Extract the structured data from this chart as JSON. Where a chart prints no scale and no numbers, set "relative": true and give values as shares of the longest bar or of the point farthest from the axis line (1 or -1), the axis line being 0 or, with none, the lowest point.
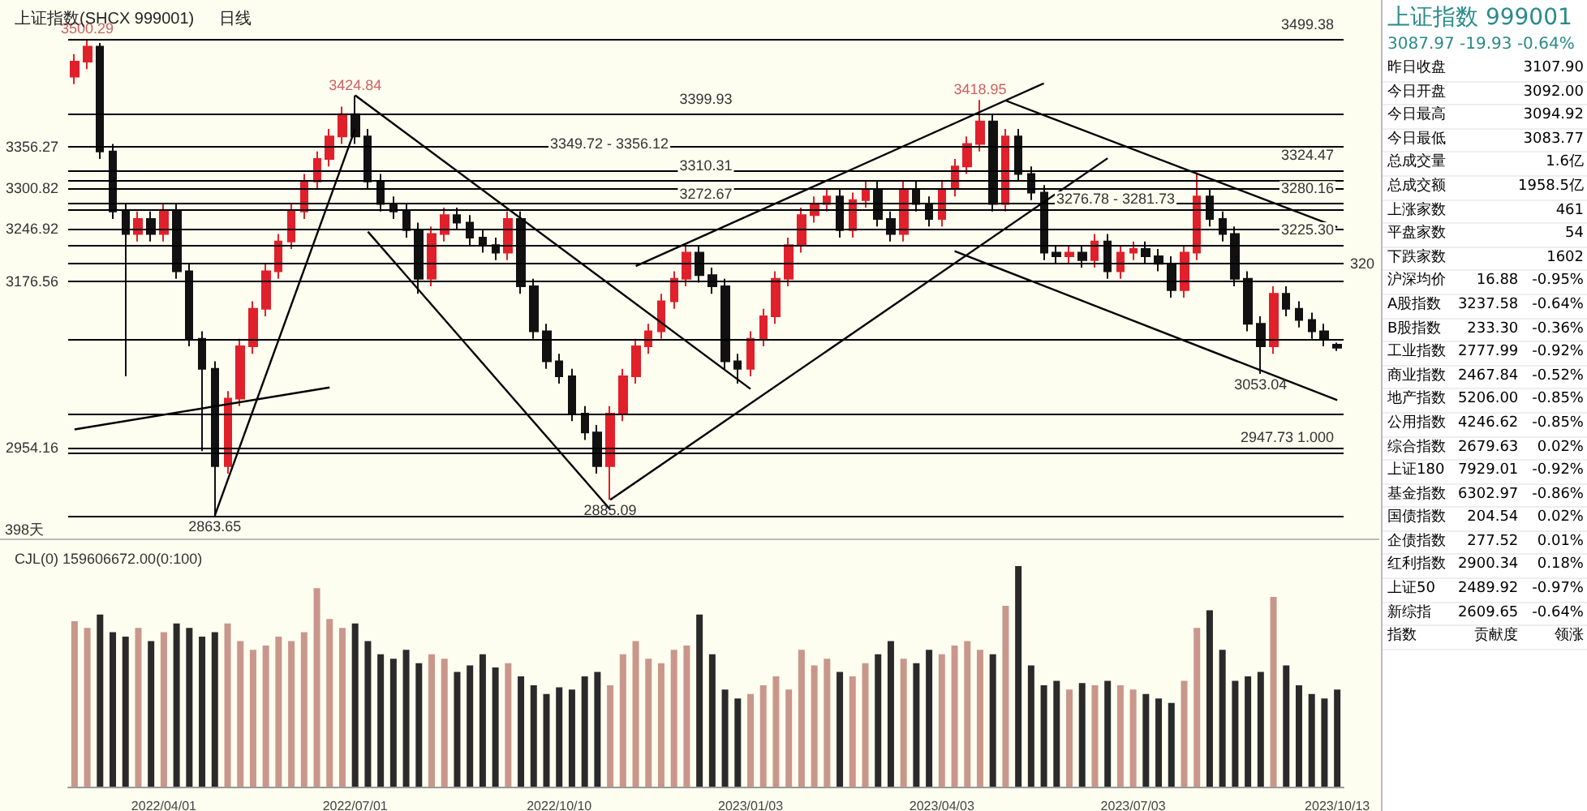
{
  "chart_data": [
    {
      "type": "candlestick",
      "title": "上证指数(SHCX 999001)",
      "subtitle": "日线",
      "tick_labels": false,
      "categories": [
        null,
        null,
        null,
        null,
        null,
        null,
        null,
        "2022/04/01",
        null,
        null,
        null,
        null,
        null,
        null,
        null,
        null,
        null,
        null,
        null,
        null,
        null,
        null,
        "2022/07/01",
        null,
        null,
        null,
        null,
        null,
        null,
        null,
        null,
        null,
        null,
        null,
        null,
        null,
        null,
        null,
        "2022/10/10",
        null,
        null,
        null,
        null,
        null,
        null,
        null,
        null,
        null,
        null,
        null,
        null,
        null,
        null,
        "2023/01/03",
        null,
        null,
        null,
        null,
        null,
        null,
        null,
        null,
        null,
        null,
        null,
        null,
        null,
        null,
        "2023/04/03",
        null,
        null,
        null,
        null,
        null,
        null,
        null,
        null,
        null,
        null,
        null,
        null,
        null,
        null,
        "2023/07/03",
        null,
        null,
        null,
        null,
        null,
        null,
        null,
        null,
        null,
        null,
        null,
        null,
        null,
        null,
        null,
        "2023/10/13"
      ],
      "ohlc": [
        [
          3450,
          3480,
          3440,
          3470
        ],
        [
          3470,
          3500.29,
          3460,
          3490
        ],
        [
          3490,
          3495,
          3340,
          3350
        ],
        [
          3350,
          3360,
          3260,
          3270
        ],
        [
          3270,
          3280,
          3050,
          3240
        ],
        [
          3240,
          3270,
          3230,
          3260
        ],
        [
          3260,
          3270,
          3230,
          3240
        ],
        [
          3240,
          3280,
          3230,
          3270
        ],
        [
          3270,
          3280,
          3180,
          3190
        ],
        [
          3190,
          3200,
          3090,
          3100
        ],
        [
          3100,
          3110,
          2950,
          3060
        ],
        [
          3060,
          3070,
          2863.65,
          2930
        ],
        [
          2930,
          3030,
          2920,
          3020
        ],
        [
          3020,
          3100,
          3010,
          3090
        ],
        [
          3090,
          3150,
          3080,
          3140
        ],
        [
          3140,
          3200,
          3130,
          3190
        ],
        [
          3190,
          3240,
          3180,
          3230
        ],
        [
          3230,
          3280,
          3220,
          3270
        ],
        [
          3270,
          3320,
          3260,
          3310
        ],
        [
          3310,
          3350,
          3300,
          3340
        ],
        [
          3340,
          3380,
          3330,
          3370
        ],
        [
          3370,
          3410,
          3360,
          3400
        ],
        [
          3400,
          3424.84,
          3360,
          3370
        ],
        [
          3370,
          3380,
          3300,
          3310
        ],
        [
          3310,
          3320,
          3270,
          3280
        ],
        [
          3280,
          3290,
          3260,
          3270
        ],
        [
          3270,
          3280,
          3235,
          3245
        ],
        [
          3245,
          3255,
          3160,
          3180
        ],
        [
          3180,
          3250,
          3170,
          3240
        ],
        [
          3240,
          3275,
          3230,
          3265
        ],
        [
          3265,
          3275,
          3245,
          3255
        ],
        [
          3255,
          3265,
          3225,
          3235
        ],
        [
          3235,
          3245,
          3215,
          3225
        ],
        [
          3225,
          3235,
          3205,
          3215
        ],
        [
          3215,
          3270,
          3205,
          3260
        ],
        [
          3260,
          3270,
          3160,
          3170
        ],
        [
          3170,
          3180,
          3100,
          3110
        ],
        [
          3110,
          3120,
          3060,
          3070
        ],
        [
          3070,
          3080,
          3040,
          3050
        ],
        [
          3050,
          3060,
          2990,
          3000
        ],
        [
          3000,
          3010,
          2965,
          2975
        ],
        [
          2975,
          2985,
          2920,
          2930
        ],
        [
          2930,
          3010,
          2885.09,
          3000
        ],
        [
          3000,
          3060,
          2990,
          3050
        ],
        [
          3050,
          3100,
          3040,
          3090
        ],
        [
          3090,
          3120,
          3080,
          3110
        ],
        [
          3110,
          3160,
          3100,
          3150
        ],
        [
          3150,
          3190,
          3140,
          3180
        ],
        [
          3180,
          3225,
          3170,
          3215
        ],
        [
          3215,
          3225,
          3175,
          3185
        ],
        [
          3185,
          3195,
          3160,
          3170
        ],
        [
          3170,
          3180,
          3060,
          3070
        ],
        [
          3070,
          3080,
          3040,
          3060
        ],
        [
          3060,
          3110,
          3050,
          3100
        ],
        [
          3100,
          3140,
          3090,
          3130
        ],
        [
          3130,
          3190,
          3120,
          3180
        ],
        [
          3180,
          3235,
          3170,
          3225
        ],
        [
          3225,
          3275,
          3215,
          3265
        ],
        [
          3265,
          3290,
          3255,
          3280
        ],
        [
          3280,
          3300,
          3270,
          3290
        ],
        [
          3290,
          3300,
          3235,
          3245
        ],
        [
          3245,
          3295,
          3235,
          3285
        ],
        [
          3285,
          3310,
          3275,
          3300
        ],
        [
          3300,
          3310,
          3250,
          3260
        ],
        [
          3260,
          3270,
          3230,
          3240
        ],
        [
          3240,
          3310,
          3230,
          3300
        ],
        [
          3300,
          3310,
          3270,
          3280
        ],
        [
          3280,
          3290,
          3250,
          3260
        ],
        [
          3260,
          3310,
          3250,
          3300
        ],
        [
          3300,
          3340,
          3290,
          3330
        ],
        [
          3330,
          3370,
          3320,
          3360
        ],
        [
          3360,
          3418.95,
          3350,
          3390
        ],
        [
          3390,
          3400,
          3270,
          3280
        ],
        [
          3280,
          3380,
          3270,
          3370
        ],
        [
          3370,
          3380,
          3310,
          3320
        ],
        [
          3320,
          3330,
          3285,
          3295
        ],
        [
          3295,
          3305,
          3205,
          3215
        ],
        [
          3215,
          3225,
          3200,
          3210
        ],
        [
          3210,
          3225,
          3200,
          3215
        ],
        [
          3215,
          3225,
          3195,
          3205
        ],
        [
          3205,
          3240,
          3195,
          3230
        ],
        [
          3230,
          3240,
          3180,
          3190
        ],
        [
          3190,
          3225,
          3180,
          3215
        ],
        [
          3215,
          3230,
          3205,
          3220
        ],
        [
          3220,
          3230,
          3200,
          3210
        ],
        [
          3210,
          3220,
          3190,
          3200
        ],
        [
          3200,
          3210,
          3155,
          3165
        ],
        [
          3165,
          3225,
          3155,
          3215
        ],
        [
          3215,
          3322,
          3205,
          3290
        ],
        [
          3290,
          3300,
          3250,
          3260
        ],
        [
          3260,
          3270,
          3230,
          3240
        ],
        [
          3240,
          3250,
          3170,
          3180
        ],
        [
          3180,
          3190,
          3110,
          3120
        ],
        [
          3120,
          3130,
          3053.04,
          3090
        ],
        [
          3090,
          3170,
          3080,
          3160
        ],
        [
          3160,
          3170,
          3130,
          3140
        ],
        [
          3140,
          3150,
          3115,
          3125
        ],
        [
          3125,
          3135,
          3100,
          3110
        ],
        [
          3110,
          3120,
          3090,
          3100
        ],
        [
          3092.0,
          3094.92,
          3083.77,
          3087.97
        ]
      ],
      "series": [
        {
          "type": "line",
          "color": "#000000",
          "values": [
            2979,
            null,
            null,
            null,
            null,
            null,
            null,
            null,
            null,
            null,
            null,
            null,
            null,
            null,
            null,
            null,
            null,
            null,
            null,
            null,
            3035,
            null,
            null,
            null,
            null,
            null,
            null,
            null,
            null,
            null,
            null,
            null,
            null,
            null,
            null,
            null,
            null,
            null,
            null,
            null,
            null,
            null,
            null,
            null,
            null,
            null,
            null,
            null,
            null,
            null,
            null,
            null,
            null,
            null,
            null,
            null,
            null,
            null,
            null,
            null,
            null,
            null,
            null,
            null,
            null,
            null,
            null,
            null,
            null,
            null,
            null,
            null,
            null,
            null,
            null,
            null,
            null,
            null,
            null,
            null,
            null,
            null,
            null,
            null,
            null,
            null,
            null,
            null,
            null,
            null,
            null,
            null,
            null,
            null,
            null,
            null,
            null,
            null,
            null,
            null
          ]
        },
        {
          "type": "line",
          "color": "#000000",
          "values": [
            null,
            null,
            null,
            null,
            null,
            null,
            null,
            null,
            null,
            null,
            null,
            2864,
            null,
            null,
            null,
            null,
            null,
            null,
            null,
            null,
            null,
            null,
            3380,
            null,
            null,
            null,
            null,
            null,
            null,
            null,
            null,
            null,
            null,
            null,
            null,
            null,
            null,
            null,
            null,
            null,
            null,
            null,
            null,
            null,
            null,
            null,
            null,
            null,
            null,
            null,
            null,
            null,
            null,
            null,
            null,
            null,
            null,
            null,
            null,
            null,
            null,
            null,
            null,
            null,
            null,
            null,
            null,
            null,
            null,
            null,
            null,
            null,
            null,
            null,
            null,
            null,
            null,
            null,
            null,
            null,
            null,
            null,
            null,
            null,
            null,
            null,
            null,
            null,
            null,
            null,
            null,
            null,
            null,
            null,
            null,
            null,
            null,
            null,
            null,
            null
          ]
        },
        {
          "type": "line",
          "color": "#000000",
          "values": [
            null,
            null,
            null,
            null,
            null,
            null,
            null,
            null,
            null,
            null,
            null,
            null,
            null,
            null,
            null,
            null,
            null,
            null,
            null,
            null,
            null,
            null,
            3425,
            null,
            null,
            null,
            null,
            null,
            null,
            null,
            null,
            null,
            null,
            null,
            null,
            null,
            null,
            null,
            null,
            null,
            null,
            null,
            null,
            null,
            null,
            null,
            null,
            null,
            null,
            null,
            null,
            null,
            null,
            3033,
            null,
            null,
            null,
            null,
            null,
            null,
            null,
            null,
            null,
            null,
            null,
            null,
            null,
            null,
            null,
            null,
            null,
            null,
            null,
            null,
            null,
            null,
            null,
            null,
            null,
            null,
            null,
            null,
            null,
            null,
            null,
            null,
            null,
            null,
            null,
            null,
            null,
            null,
            null,
            null,
            null,
            null,
            null,
            null,
            null,
            null
          ]
        },
        {
          "type": "line",
          "color": "#000000",
          "values": [
            null,
            null,
            null,
            null,
            null,
            null,
            null,
            null,
            null,
            null,
            null,
            null,
            null,
            null,
            null,
            null,
            null,
            null,
            null,
            null,
            null,
            null,
            null,
            3243,
            null,
            null,
            null,
            null,
            null,
            null,
            null,
            null,
            null,
            null,
            null,
            null,
            null,
            null,
            null,
            null,
            null,
            null,
            2872,
            null,
            null,
            null,
            null,
            null,
            null,
            null,
            null,
            null,
            null,
            null,
            null,
            null,
            null,
            null,
            null,
            null,
            null,
            null,
            null,
            null,
            null,
            null,
            null,
            null,
            null,
            null,
            null,
            null,
            null,
            null,
            null,
            null,
            null,
            null,
            null,
            null,
            null,
            null,
            null,
            null,
            null,
            null,
            null,
            null,
            null,
            null,
            null,
            null,
            null,
            null,
            null,
            null,
            null,
            null,
            null,
            null
          ]
        },
        {
          "type": "line",
          "color": "#000000",
          "values": [
            null,
            null,
            null,
            null,
            null,
            null,
            null,
            null,
            null,
            null,
            null,
            null,
            null,
            null,
            null,
            null,
            null,
            null,
            null,
            null,
            null,
            null,
            null,
            null,
            null,
            null,
            null,
            null,
            null,
            null,
            null,
            null,
            null,
            null,
            null,
            null,
            null,
            null,
            null,
            null,
            null,
            null,
            2885,
            null,
            null,
            null,
            null,
            null,
            null,
            null,
            null,
            null,
            null,
            null,
            null,
            null,
            null,
            null,
            null,
            null,
            null,
            null,
            null,
            null,
            null,
            null,
            null,
            null,
            null,
            null,
            null,
            null,
            null,
            null,
            null,
            null,
            null,
            null,
            null,
            null,
            null,
            3341,
            null,
            null,
            null,
            null,
            null,
            null,
            null,
            null,
            null,
            null,
            null,
            null,
            null,
            null,
            null,
            null,
            null,
            null
          ]
        },
        {
          "type": "line",
          "color": "#000000",
          "values": [
            null,
            null,
            null,
            null,
            null,
            null,
            null,
            null,
            null,
            null,
            null,
            null,
            null,
            null,
            null,
            null,
            null,
            null,
            null,
            null,
            null,
            null,
            null,
            null,
            null,
            null,
            null,
            null,
            null,
            null,
            null,
            null,
            null,
            null,
            null,
            null,
            null,
            null,
            null,
            null,
            null,
            null,
            null,
            null,
            3197,
            null,
            null,
            null,
            null,
            null,
            null,
            null,
            null,
            null,
            null,
            null,
            null,
            null,
            null,
            null,
            null,
            null,
            null,
            null,
            null,
            null,
            null,
            null,
            null,
            null,
            null,
            null,
            null,
            null,
            null,
            null,
            3441,
            null,
            null,
            null,
            null,
            null,
            null,
            null,
            null,
            null,
            null,
            null,
            null,
            null,
            null,
            null,
            null,
            null,
            null,
            null,
            null,
            null,
            null,
            null
          ]
        },
        {
          "type": "line",
          "color": "#000000",
          "values": [
            null,
            null,
            null,
            null,
            null,
            null,
            null,
            null,
            null,
            null,
            null,
            null,
            null,
            null,
            null,
            null,
            null,
            null,
            null,
            null,
            null,
            null,
            null,
            null,
            null,
            null,
            null,
            null,
            null,
            null,
            null,
            null,
            null,
            null,
            null,
            null,
            null,
            null,
            null,
            null,
            null,
            null,
            null,
            null,
            null,
            null,
            null,
            null,
            null,
            null,
            null,
            null,
            null,
            null,
            null,
            null,
            null,
            null,
            null,
            null,
            null,
            null,
            null,
            null,
            null,
            null,
            null,
            null,
            null,
            null,
            null,
            null,
            null,
            3418,
            null,
            null,
            null,
            null,
            null,
            null,
            null,
            null,
            null,
            null,
            null,
            null,
            null,
            null,
            null,
            null,
            null,
            null,
            null,
            null,
            null,
            null,
            null,
            null,
            null,
            3249
          ]
        },
        {
          "type": "line",
          "color": "#000000",
          "values": [
            null,
            null,
            null,
            null,
            null,
            null,
            null,
            null,
            null,
            null,
            null,
            null,
            null,
            null,
            null,
            null,
            null,
            null,
            null,
            null,
            null,
            null,
            null,
            null,
            null,
            null,
            null,
            null,
            null,
            null,
            null,
            null,
            null,
            null,
            null,
            null,
            null,
            null,
            null,
            null,
            null,
            null,
            null,
            null,
            null,
            null,
            null,
            null,
            null,
            null,
            null,
            null,
            null,
            null,
            null,
            null,
            null,
            null,
            null,
            null,
            null,
            null,
            null,
            null,
            null,
            null,
            null,
            null,
            null,
            3217,
            null,
            null,
            null,
            null,
            null,
            null,
            null,
            null,
            null,
            null,
            null,
            null,
            null,
            null,
            null,
            null,
            null,
            null,
            null,
            null,
            null,
            null,
            null,
            null,
            null,
            null,
            null,
            null,
            null,
            3018
          ]
        }
      ],
      "ref_lines": [
        {
          "axis": "y",
          "value": 3499.38,
          "label": "3499.38"
        },
        {
          "axis": "y",
          "value": 3399.93,
          "label": "3399.93"
        },
        {
          "axis": "y",
          "value": 3356.27,
          "label": "3356.27"
        },
        {
          "axis": "y",
          "value": 3324.47,
          "label": "3324.47"
        },
        {
          "axis": "y",
          "value": 3310.31,
          "label": "3310.31"
        },
        {
          "axis": "y",
          "value": 3300.82,
          "label": "3300.82"
        },
        {
          "axis": "y",
          "value": 3280.16,
          "label": "3280.16"
        },
        {
          "axis": "y",
          "value": 3272.67,
          "label": "3272.67"
        },
        {
          "axis": "y",
          "value": 3246.92,
          "label": "3246.92"
        },
        {
          "axis": "y",
          "value": 3225.3,
          "label": "3225.30"
        },
        {
          "axis": "y",
          "value": 3200,
          "label": null
        },
        {
          "axis": "y",
          "value": 3176.56,
          "label": "3176.56"
        },
        {
          "axis": "y",
          "value": 3100,
          "label": null
        },
        {
          "axis": "y",
          "value": 3000,
          "label": null
        },
        {
          "axis": "y",
          "value": 2954.16,
          "label": "2954.16"
        },
        {
          "axis": "y",
          "value": 2947.73,
          "label": "2947.73 1.000"
        },
        {
          "axis": "y",
          "value": 2863.65,
          "label": null
        }
      ],
      "annotations": [
        {
          "text": "3500.29",
          "y": 3500.29
        },
        {
          "text": "2863.65",
          "y": 2863.65
        },
        {
          "text": "3424.84",
          "y": 3424.84
        },
        {
          "text": "2885.09",
          "y": 2885.09
        },
        {
          "text": "3418.95",
          "y": 3418.95
        },
        {
          "text": "3053.04",
          "y": 3053.04
        },
        "3349.72 - 3356.12",
        "3276.78 - 3281.73",
        "320",
        "398天"
      ]
    },
    {
      "type": "bar",
      "title": "CJL(0) 159606672.00(0:100)",
      "relative": true,
      "tick_labels": "x",
      "categories": [
        null,
        null,
        null,
        null,
        null,
        null,
        null,
        "2022/04/01",
        null,
        null,
        null,
        null,
        null,
        null,
        null,
        null,
        null,
        null,
        null,
        null,
        null,
        null,
        "2022/07/01",
        null,
        null,
        null,
        null,
        null,
        null,
        null,
        null,
        null,
        null,
        null,
        null,
        null,
        null,
        null,
        "2022/10/10",
        null,
        null,
        null,
        null,
        null,
        null,
        null,
        null,
        null,
        null,
        null,
        null,
        null,
        null,
        "2023/01/03",
        null,
        null,
        null,
        null,
        null,
        null,
        null,
        null,
        null,
        null,
        null,
        null,
        null,
        null,
        "2023/04/03",
        null,
        null,
        null,
        null,
        null,
        null,
        null,
        null,
        null,
        null,
        null,
        null,
        null,
        null,
        "2023/07/03",
        null,
        null,
        null,
        null,
        null,
        null,
        null,
        null,
        null,
        null,
        null,
        null,
        null,
        null,
        null,
        "2023/10/13"
      ],
      "values": [
        0.75,
        0.72,
        0.78,
        0.7,
        0.68,
        0.72,
        0.66,
        0.7,
        0.74,
        0.72,
        0.68,
        0.7,
        0.74,
        0.66,
        0.62,
        0.64,
        0.68,
        0.66,
        0.7,
        0.9,
        0.76,
        0.72,
        0.74,
        0.66,
        0.6,
        0.58,
        0.62,
        0.56,
        0.6,
        0.58,
        0.52,
        0.55,
        0.6,
        0.54,
        0.56,
        0.5,
        0.46,
        0.42,
        0.45,
        0.44,
        0.5,
        0.52,
        0.46,
        0.6,
        0.66,
        0.58,
        0.56,
        0.62,
        0.64,
        0.78,
        0.6,
        0.44,
        0.4,
        0.42,
        0.46,
        0.5,
        0.44,
        0.62,
        0.55,
        0.58,
        0.52,
        0.5,
        0.56,
        0.6,
        0.66,
        0.58,
        0.56,
        0.62,
        0.6,
        0.64,
        0.66,
        0.62,
        0.6,
        0.82,
        1,
        0.55,
        0.46,
        0.48,
        0.44,
        0.47,
        0.46,
        0.48,
        0.46,
        0.44,
        0.42,
        0.4,
        0.38,
        0.48,
        0.72,
        0.8,
        0.62,
        0.48,
        0.5,
        0.52,
        0.86,
        0.55,
        0.46,
        0.42,
        0.4,
        0.44
      ]
    },
    {
      "type": "other",
      "title": "上证指数 999001",
      "subtitle": "3087.97 -19.93 -0.64%",
      "annotations": [
        "昨日收盘 3107.90",
        "今日开盘 3092.00",
        "今日最高 3094.92",
        "今日最低 3083.77",
        "总成交量 1.6亿",
        "总成交额 1958.5亿",
        "上涨家数 461",
        "平盘家数 54",
        "下跌家数 1602",
        "沪深均价 16.88 -0.95%",
        "A股指数 3237.58 -0.64%",
        "B股指数 233.30 -0.36%",
        "工业指数 2777.99 -0.92%",
        "商业指数 2467.84 -0.52%",
        "地产指数 5206.00 -0.85%",
        "公用指数 4246.62 -0.85%",
        "综合指数 2679.63 0.02%",
        "上证180 7929.01 -0.92%",
        "基金指数 6302.97 -0.86%",
        "国债指数 204.54 0.02%",
        "企债指数 277.52 0.01%",
        "红利指数 2900.34 0.18%",
        "上证50 2489.92 -0.97%",
        "新综指 2609.65 -0.64%",
        "指数 贡献度 领涨"
      ]
    }
  ]
}
